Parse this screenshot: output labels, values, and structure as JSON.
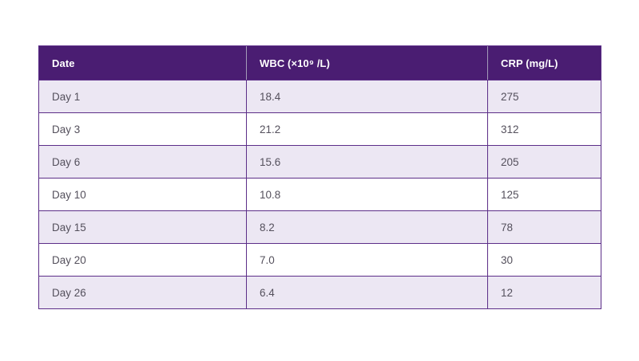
{
  "chart_data": {
    "type": "table",
    "title": "",
    "columns": [
      "Date",
      "WBC (×10⁹ /L)",
      "CRP (mg/L)"
    ],
    "categories": [
      "Day 1",
      "Day 3",
      "Day 6",
      "Day 10",
      "Day 15",
      "Day 20",
      "Day 26"
    ],
    "rows": [
      [
        "Day 1",
        "18.4",
        "275"
      ],
      [
        "Day 3",
        "21.2",
        "312"
      ],
      [
        "Day 6",
        "15.6",
        "205"
      ],
      [
        "Day 10",
        "10.8",
        "125"
      ],
      [
        "Day 15",
        "8.2",
        "78"
      ],
      [
        "Day 20",
        "7.0",
        "30"
      ],
      [
        "Day 26",
        "6.4",
        "12"
      ]
    ],
    "series": [
      {
        "name": "WBC (×10⁹ /L)",
        "values": [
          18.4,
          21.2,
          15.6,
          10.8,
          8.2,
          7.0,
          6.4
        ]
      },
      {
        "name": "CRP (mg/L)",
        "values": [
          275,
          312,
          205,
          125,
          78,
          30,
          12
        ]
      }
    ],
    "layout": {
      "striped_rows": true,
      "grid": true,
      "header_position": "top"
    }
  },
  "colors": {
    "header_bg": "#4A1D72",
    "header_text": "#FFFFFF",
    "border": "#5C2E88",
    "header_divider": "#A49BB9",
    "row_alt_bg": "#ECE7F3",
    "row_bg": "#FFFFFF",
    "cell_text": "#54505C",
    "page_bg": "#FFFFFF"
  }
}
